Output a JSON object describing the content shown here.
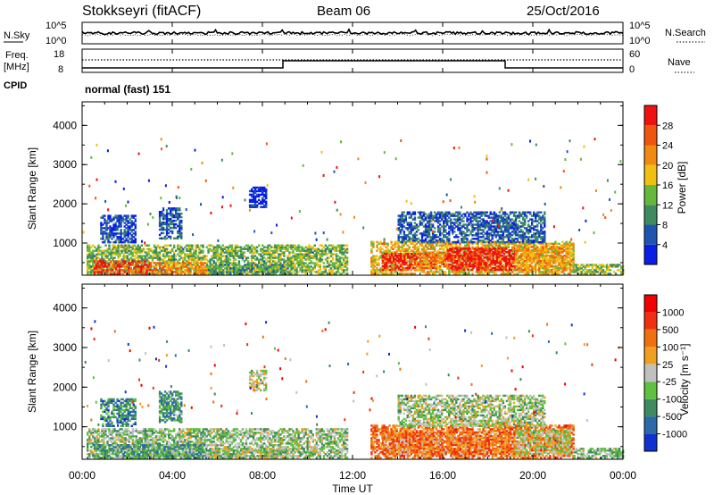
{
  "header": {
    "station": "Stokkseyri (fitACF)",
    "beam": "Beam 06",
    "date": "25/Oct/2016"
  },
  "noise_panel": {
    "left_label": "N.Sky",
    "right_label": "N.Search",
    "left_ticks": [
      "10^5",
      "10^0"
    ],
    "right_ticks": [
      "10^5",
      "10^0"
    ]
  },
  "freq_panel": {
    "left_label_line1": "Freq.",
    "left_label_line2": "[MHz]",
    "right_label": "Nave",
    "left_ticks": [
      "18",
      "8"
    ],
    "right_ticks": [
      "60",
      "0"
    ],
    "cpid_label": "CPID",
    "cpid_value": "normal (fast) 151"
  },
  "chart_data": [
    {
      "type": "heatmap",
      "title": "",
      "ylabel": "Slant Range [km]",
      "xlabel": "",
      "ylim": [
        180,
        4600
      ],
      "yticks": [
        "1000",
        "2000",
        "3000",
        "4000"
      ],
      "xlim_hours": [
        0,
        24
      ],
      "xticks": [
        "00:00",
        "04:00",
        "08:00",
        "12:00",
        "16:00",
        "20:00",
        "00:00"
      ],
      "colorbar": {
        "label": "Power [dB]",
        "ticks": [
          "4",
          "8",
          "12",
          "16",
          "20",
          "24",
          "28"
        ],
        "colors": [
          "#0a1ee6",
          "#1f55b0",
          "#3f8a5e",
          "#66b83a",
          "#f0c010",
          "#f08a10",
          "#f05510",
          "#f01010"
        ]
      },
      "regions": [
        {
          "t": [
            0.2,
            11.8
          ],
          "r": [
            200,
            950
          ],
          "level": 0.42
        },
        {
          "t": [
            0.5,
            3.0
          ],
          "r": [
            200,
            550
          ],
          "level": 0.85
        },
        {
          "t": [
            3.0,
            5.5
          ],
          "r": [
            200,
            500
          ],
          "level": 0.7
        },
        {
          "t": [
            5.5,
            9.0
          ],
          "r": [
            200,
            450
          ],
          "level": 0.35
        },
        {
          "t": [
            0.8,
            2.4
          ],
          "r": [
            1000,
            1700
          ],
          "level": 0.15
        },
        {
          "t": [
            3.4,
            4.4
          ],
          "r": [
            1100,
            1900
          ],
          "level": 0.2
        },
        {
          "t": [
            7.4,
            8.2
          ],
          "r": [
            1900,
            2400
          ],
          "level": 0.05
        },
        {
          "t": [
            12.8,
            21.8
          ],
          "r": [
            200,
            1050
          ],
          "level": 0.6
        },
        {
          "t": [
            13.3,
            14.8
          ],
          "r": [
            300,
            750
          ],
          "level": 0.95
        },
        {
          "t": [
            16.2,
            19.2
          ],
          "r": [
            300,
            850
          ],
          "level": 0.95
        },
        {
          "t": [
            14.8,
            16.2
          ],
          "r": [
            350,
            750
          ],
          "level": 0.75
        },
        {
          "t": [
            19.2,
            21.6
          ],
          "r": [
            300,
            900
          ],
          "level": 0.65
        },
        {
          "t": [
            14.0,
            20.5
          ],
          "r": [
            1000,
            1800
          ],
          "level": 0.2
        },
        {
          "t": [
            21.8,
            24.0
          ],
          "r": [
            200,
            450
          ],
          "level": 0.45
        }
      ]
    },
    {
      "type": "heatmap",
      "title": "",
      "ylabel": "Slant Range [km]",
      "xlabel": "Time UT",
      "ylim": [
        180,
        4600
      ],
      "yticks": [
        "1000",
        "2000",
        "3000",
        "4000"
      ],
      "xlim_hours": [
        0,
        24
      ],
      "xticks": [
        "00:00",
        "04:00",
        "08:00",
        "12:00",
        "16:00",
        "20:00",
        "00:00"
      ],
      "colorbar": {
        "label": "Velocity [m s⁻¹]",
        "ticks": [
          "1000",
          "500",
          "100",
          "25",
          "-25",
          "-100",
          "-500",
          "-1000"
        ],
        "colors": [
          "#1030d0",
          "#2a6aa8",
          "#3f8a5e",
          "#60c040",
          "#c0c0c0",
          "#f0a020",
          "#f07010",
          "#f03010",
          "#f00000"
        ]
      },
      "regions": [
        {
          "t": [
            0.2,
            11.8
          ],
          "r": [
            200,
            950
          ],
          "level": 0.42
        },
        {
          "t": [
            0.5,
            5.5
          ],
          "r": [
            200,
            550
          ],
          "level": 0.32
        },
        {
          "t": [
            5.5,
            9.0
          ],
          "r": [
            200,
            450
          ],
          "level": 0.45
        },
        {
          "t": [
            0.8,
            2.4
          ],
          "r": [
            1000,
            1700
          ],
          "level": 0.25
        },
        {
          "t": [
            3.4,
            4.4
          ],
          "r": [
            1100,
            1900
          ],
          "level": 0.3
        },
        {
          "t": [
            7.4,
            8.2
          ],
          "r": [
            1900,
            2400
          ],
          "level": 0.5
        },
        {
          "t": [
            12.8,
            21.8
          ],
          "r": [
            200,
            1050
          ],
          "level": 0.72
        },
        {
          "t": [
            13.3,
            19.2
          ],
          "r": [
            300,
            850
          ],
          "level": 0.7
        },
        {
          "t": [
            19.2,
            21.6
          ],
          "r": [
            300,
            900
          ],
          "level": 0.5
        },
        {
          "t": [
            14.0,
            20.5
          ],
          "r": [
            1000,
            1800
          ],
          "level": 0.45
        },
        {
          "t": [
            21.8,
            24.0
          ],
          "r": [
            200,
            450
          ],
          "level": 0.4
        }
      ]
    }
  ]
}
